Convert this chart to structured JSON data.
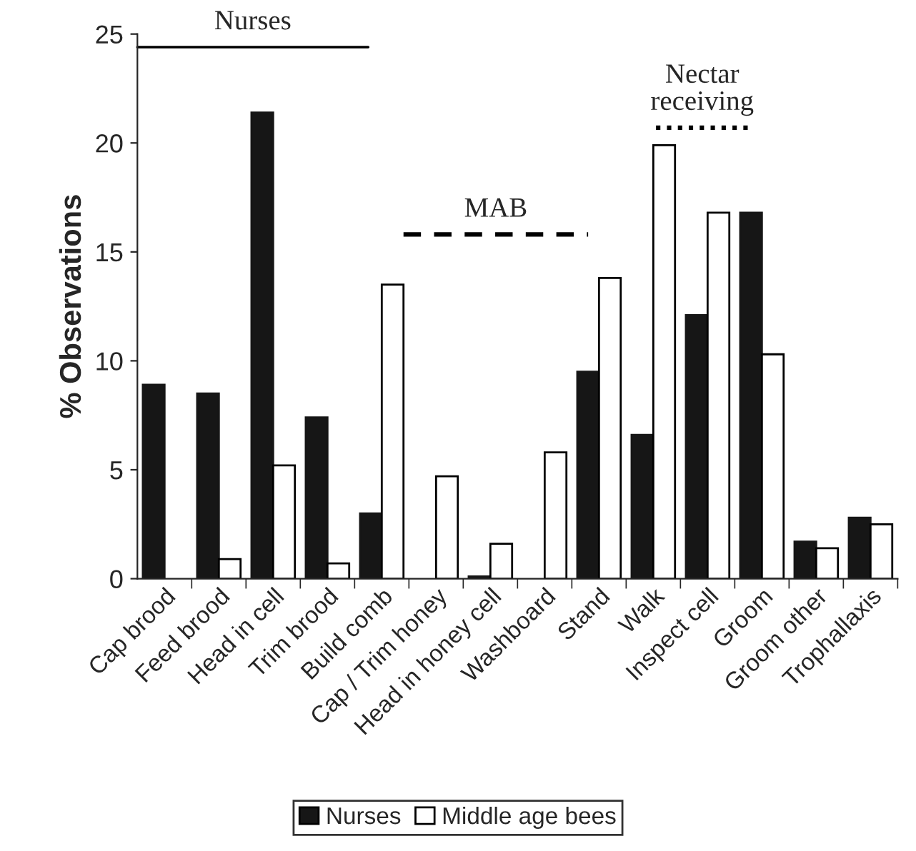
{
  "chart_data": {
    "type": "bar",
    "ylabel": "% Observations",
    "categories": [
      "Cap brood",
      "Feed brood",
      "Head in cell",
      "Trim brood",
      "Build comb",
      "Cap / Trim honey",
      "Head in honey cell",
      "Washboard",
      "Stand",
      "Walk",
      "Inspect cell",
      "Groom",
      "Groom other",
      "Trophallaxis"
    ],
    "series": [
      {
        "name": "Nurses",
        "color": "#161616",
        "values": [
          8.9,
          8.5,
          21.4,
          7.4,
          3.0,
          null,
          0.1,
          null,
          9.5,
          6.6,
          12.1,
          16.8,
          1.7,
          2.8
        ]
      },
      {
        "name": "Middle age bees",
        "color": "#ffffff",
        "values": [
          null,
          0.9,
          5.2,
          0.7,
          13.5,
          4.7,
          1.6,
          5.8,
          13.8,
          19.9,
          16.8,
          10.3,
          1.4,
          2.5
        ]
      }
    ],
    "ylim": [
      0,
      25
    ],
    "yticks": [
      0,
      5,
      10,
      15,
      20,
      25
    ],
    "grid": false,
    "legend": "bottom",
    "ref_lines": [
      {
        "axis": "y",
        "value": 24.4,
        "label": "Nurses",
        "line_style": "solid"
      },
      {
        "axis": "y",
        "value": 15.8,
        "label": "MAB",
        "line_style": "dashed"
      },
      {
        "axis": "y",
        "value": 20.7,
        "label": "Nectar\nreceiving",
        "line_style": "dotted"
      }
    ]
  }
}
